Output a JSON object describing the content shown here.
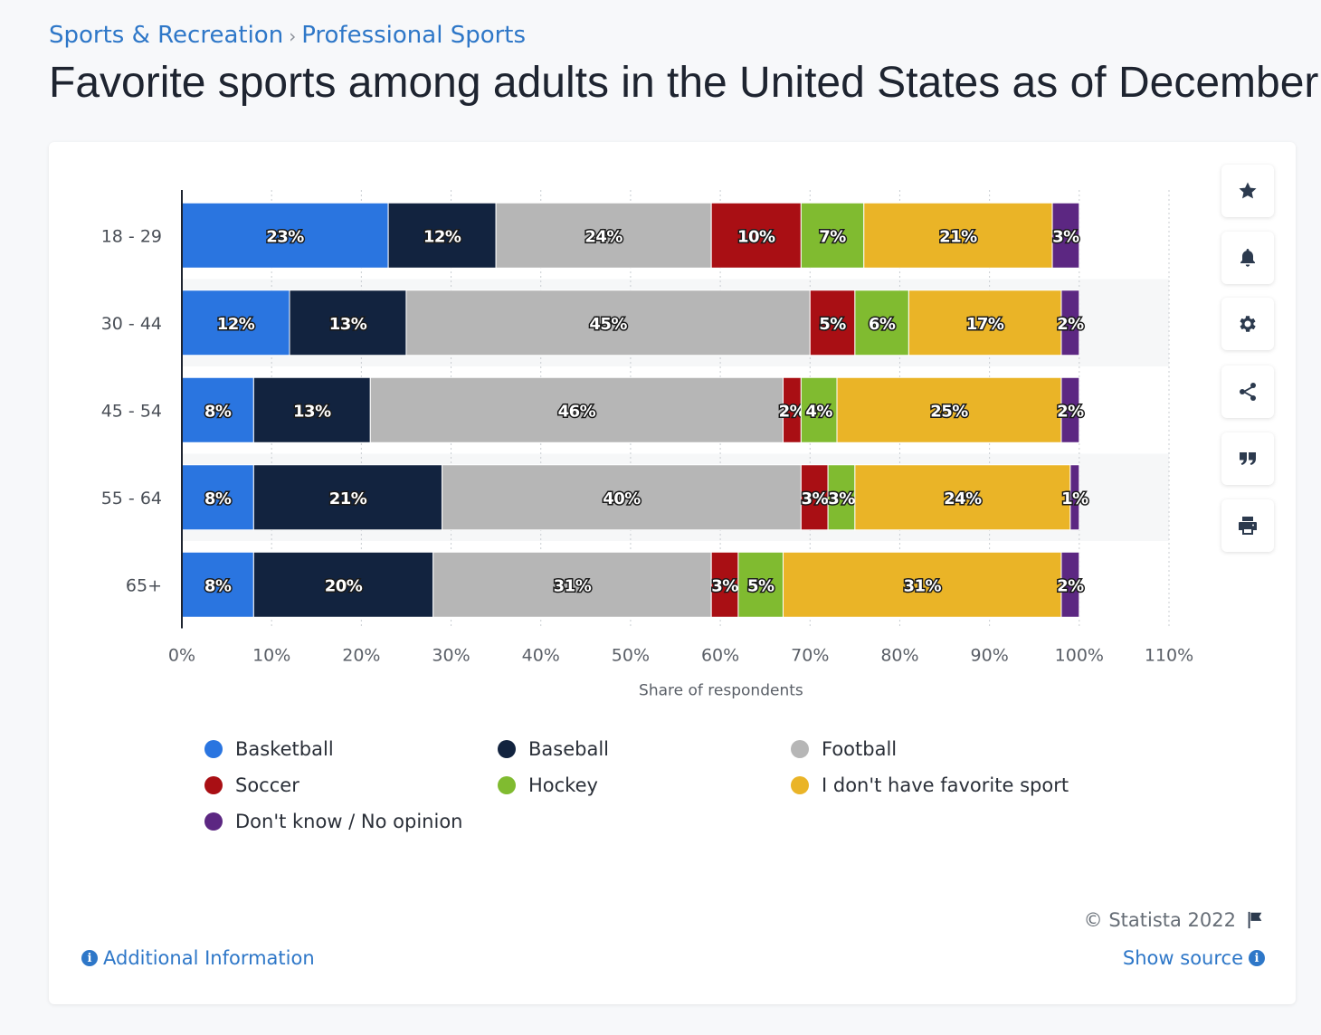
{
  "breadcrumb": {
    "category": "Sports & Recreation",
    "subcategory": "Professional Sports",
    "separator": "›"
  },
  "title": "Favorite sports among adults in the United States as of December",
  "toolbar": [
    "star-icon",
    "bell-icon",
    "gear-icon",
    "share-icon",
    "quote-icon",
    "print-icon"
  ],
  "chart_data": {
    "type": "bar",
    "orientation": "horizontal",
    "stacked": true,
    "categories": [
      "18 - 29",
      "30 - 44",
      "45 - 54",
      "55 - 64",
      "65+"
    ],
    "series": [
      {
        "name": "Basketball",
        "color": "#2a75e0",
        "values": [
          23,
          12,
          8,
          8,
          8
        ]
      },
      {
        "name": "Baseball",
        "color": "#12233f",
        "values": [
          12,
          13,
          13,
          21,
          20
        ]
      },
      {
        "name": "Football",
        "color": "#b6b6b6",
        "values": [
          24,
          45,
          46,
          40,
          31
        ]
      },
      {
        "name": "Soccer",
        "color": "#a90f14",
        "values": [
          10,
          5,
          2,
          3,
          3
        ]
      },
      {
        "name": "Hockey",
        "color": "#80bb30",
        "values": [
          7,
          6,
          4,
          3,
          5
        ]
      },
      {
        "name": "I don't have favorite sport",
        "color": "#eab427",
        "values": [
          21,
          17,
          25,
          24,
          31
        ]
      },
      {
        "name": "Don't know / No opinion",
        "color": "#5c2782",
        "values": [
          3,
          2,
          2,
          1,
          2
        ]
      }
    ],
    "xlabel": "Share of respondents",
    "ylabel": "",
    "xlim": [
      0,
      110
    ],
    "xticks": [
      "0%",
      "10%",
      "20%",
      "30%",
      "40%",
      "50%",
      "60%",
      "70%",
      "80%",
      "90%",
      "100%",
      "110%"
    ],
    "grid": true,
    "legend_position": "bottom"
  },
  "footer": {
    "copyright": "© Statista 2022",
    "additional_info": "Additional Information",
    "show_source": "Show source"
  }
}
